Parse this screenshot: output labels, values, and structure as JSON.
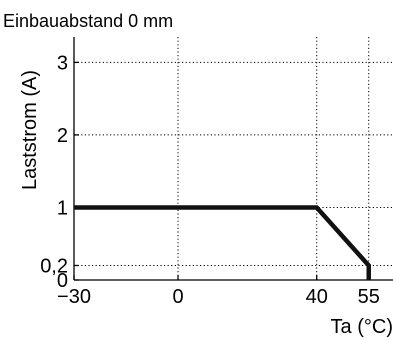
{
  "chart_data": {
    "type": "line",
    "title": "Einbauabstand 0 mm",
    "xlabel": "Ta (°C)",
    "ylabel": "Laststrom (A)",
    "xlim": [
      -30,
      62
    ],
    "ylim": [
      0,
      3.35
    ],
    "x_ticks": [
      {
        "value": -30,
        "label": "−30"
      },
      {
        "value": 0,
        "label": "0"
      },
      {
        "value": 40,
        "label": "40"
      },
      {
        "value": 55,
        "label": "55"
      }
    ],
    "y_ticks": [
      {
        "value": 0,
        "label": "0"
      },
      {
        "value": 0.2,
        "label": "0,2"
      },
      {
        "value": 1,
        "label": "1"
      },
      {
        "value": 2,
        "label": "2"
      },
      {
        "value": 3,
        "label": "3"
      }
    ],
    "grid": true,
    "series": [
      {
        "points": [
          {
            "x": -30,
            "y": 1
          },
          {
            "x": 40,
            "y": 1
          },
          {
            "x": 55,
            "y": 0.2
          },
          {
            "x": 55,
            "y": 0
          }
        ],
        "color": "#111111"
      }
    ]
  }
}
